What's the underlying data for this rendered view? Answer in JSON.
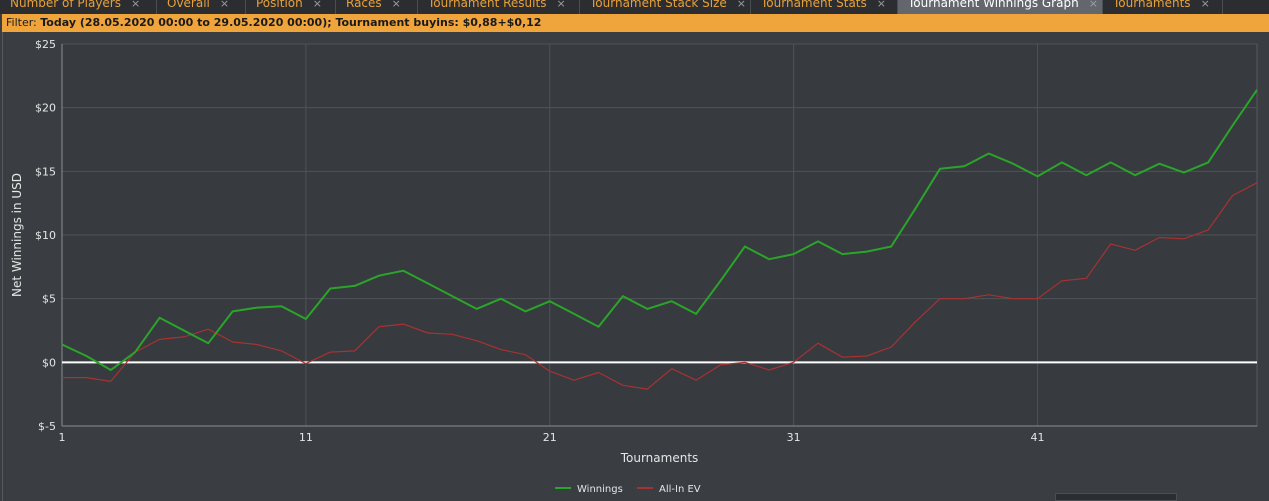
{
  "tabs": [
    {
      "label": "Number of Players",
      "close": "×",
      "active": false
    },
    {
      "label": "Overall",
      "close": "×",
      "active": false
    },
    {
      "label": "Position",
      "close": "×",
      "active": false
    },
    {
      "label": "Races",
      "close": "×",
      "active": false
    },
    {
      "label": "Tournament Results",
      "close": "×",
      "active": false
    },
    {
      "label": "Tournament Stack Size",
      "close": "×",
      "active": false
    },
    {
      "label": "Tournament Stats",
      "close": "×",
      "active": false
    },
    {
      "label": "Tournament Winnings Graph",
      "close": "×",
      "active": true
    },
    {
      "label": "Tournaments",
      "close": "×",
      "active": false
    }
  ],
  "filter": {
    "prefix": "Filter: ",
    "text": "Today (28.05.2020 00:00 to 29.05.2020 00:00); Tournament buyins: $0,88+$0,12"
  },
  "chart_data": {
    "type": "line",
    "title": "",
    "xlabel": "Tournaments",
    "ylabel": "Net Winnings in USD",
    "xlim": [
      1,
      50
    ],
    "ylim": [
      -5,
      25
    ],
    "xticks": [
      1,
      11,
      21,
      31,
      41
    ],
    "yticks": [
      -5,
      0,
      5,
      10,
      15,
      20,
      25
    ],
    "ytick_labels": [
      "$-5",
      "$0",
      "$5",
      "$10",
      "$15",
      "$20",
      "$25"
    ],
    "grid": true,
    "zero_line": true,
    "legend_position": "bottom-center",
    "series": [
      {
        "name": "Winnings",
        "color": "#2aa52a",
        "x": [
          1,
          2,
          3,
          4,
          5,
          6,
          7,
          8,
          9,
          10,
          11,
          12,
          13,
          14,
          15,
          16,
          17,
          18,
          19,
          20,
          21,
          22,
          23,
          24,
          25,
          26,
          27,
          28,
          29,
          30,
          31,
          32,
          33,
          34,
          35,
          36,
          37,
          38,
          39,
          40,
          41,
          42,
          43,
          44,
          45,
          46,
          47,
          48,
          49,
          50
        ],
        "values": [
          1.4,
          0.5,
          -0.6,
          0.8,
          3.5,
          2.5,
          1.5,
          4.0,
          4.3,
          4.4,
          3.4,
          5.8,
          6.0,
          6.8,
          7.2,
          6.2,
          5.2,
          4.2,
          5.0,
          4.0,
          4.8,
          3.8,
          2.8,
          5.2,
          4.2,
          4.8,
          3.8,
          6.4,
          9.1,
          8.1,
          8.5,
          9.5,
          8.5,
          8.7,
          9.1,
          12.1,
          15.2,
          15.4,
          16.4,
          15.6,
          14.6,
          15.7,
          14.7,
          15.7,
          14.7,
          15.6,
          14.9,
          15.7,
          18.6,
          21.4
        ]
      },
      {
        "name": "All-In EV",
        "color": "#a83232",
        "x": [
          1,
          2,
          3,
          4,
          5,
          6,
          7,
          8,
          9,
          10,
          11,
          12,
          13,
          14,
          15,
          16,
          17,
          18,
          19,
          20,
          21,
          22,
          23,
          24,
          25,
          26,
          27,
          28,
          29,
          30,
          31,
          32,
          33,
          34,
          35,
          36,
          37,
          38,
          39,
          40,
          41,
          42,
          43,
          44,
          45,
          46,
          47,
          48,
          49,
          50
        ],
        "values": [
          -1.2,
          -1.2,
          -1.5,
          0.8,
          1.8,
          2.0,
          2.6,
          1.6,
          1.4,
          0.9,
          -0.1,
          0.8,
          0.9,
          2.8,
          3.0,
          2.3,
          2.2,
          1.7,
          1.0,
          0.6,
          -0.7,
          -1.4,
          -0.8,
          -1.8,
          -2.1,
          -0.5,
          -1.4,
          -0.2,
          0.0,
          -0.6,
          0.0,
          1.5,
          0.4,
          0.5,
          1.2,
          3.2,
          5.0,
          5.0,
          5.3,
          5.0,
          5.0,
          6.4,
          6.6,
          9.3,
          8.8,
          9.8,
          9.7,
          10.4,
          13.1,
          14.1
        ]
      }
    ]
  }
}
